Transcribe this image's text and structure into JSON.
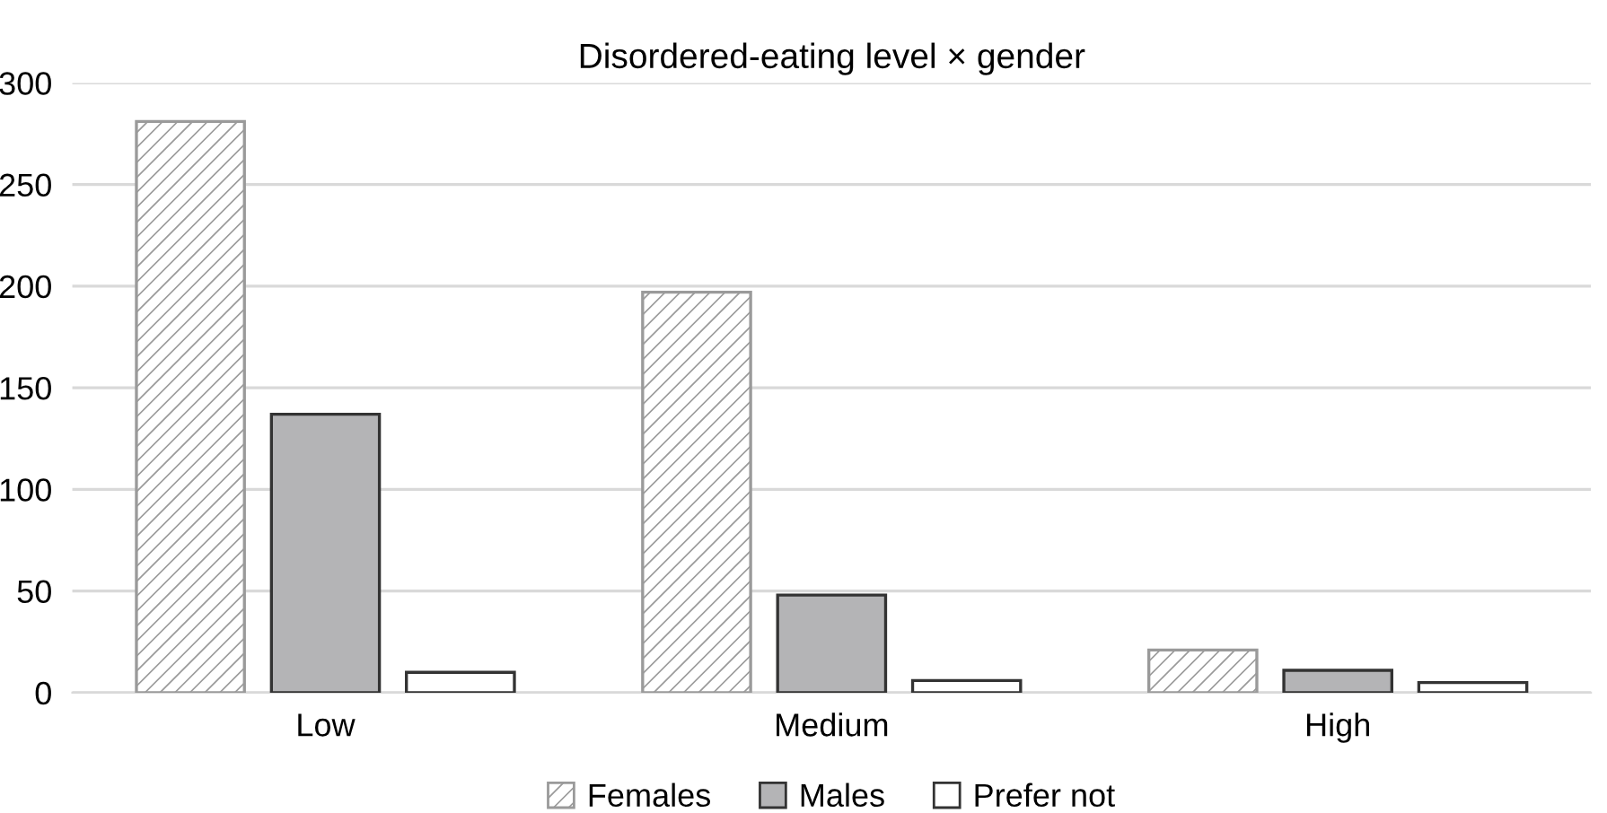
{
  "chart_data": {
    "type": "bar",
    "title": "Disordered-eating level × gender",
    "categories": [
      "Low",
      "Medium",
      "High"
    ],
    "series": [
      {
        "name": "Females",
        "color": "#9a9a9a",
        "values": [
          281,
          197,
          21
        ]
      },
      {
        "name": "Males",
        "color": "#b4b4b6",
        "values": [
          137,
          48,
          11
        ]
      },
      {
        "name": "Prefer not",
        "color": "#ffffff",
        "values": [
          10,
          6,
          5
        ]
      }
    ],
    "ylim": [
      0,
      300
    ],
    "yticks": [
      0,
      50,
      100,
      150,
      200,
      250,
      300
    ],
    "grid": "y",
    "legend": "bottom"
  }
}
